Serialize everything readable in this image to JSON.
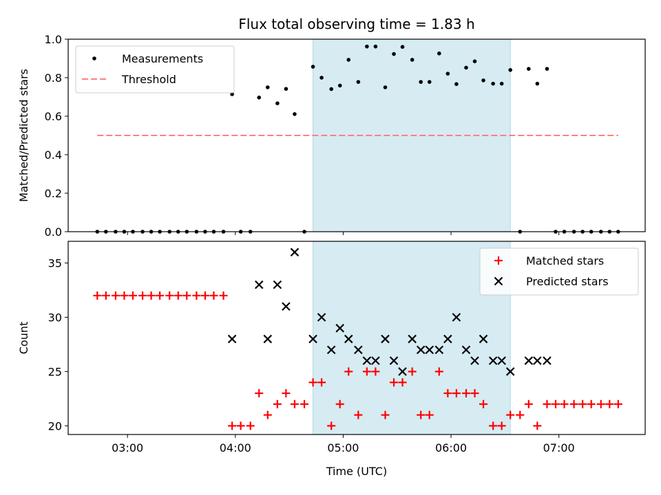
{
  "chart_data": {
    "type": "scatter",
    "title": "Flux total observing time = 1.83 h",
    "xlabel": "Time (UTC)",
    "x_unit": "hours UTC",
    "xlim": [
      2.45,
      7.8
    ],
    "xticks": [
      {
        "value": 3.0,
        "label": "03:00"
      },
      {
        "value": 4.0,
        "label": "04:00"
      },
      {
        "value": 5.0,
        "label": "05:00"
      },
      {
        "value": 6.0,
        "label": "06:00"
      },
      {
        "value": 7.0,
        "label": "07:00"
      }
    ],
    "shaded_span": [
      4.72,
      6.55
    ],
    "shade_color": "#add8e6",
    "panels": [
      {
        "id": "ratio",
        "ylabel": "Matched/Predicted stars",
        "ylim": [
          0,
          1.0
        ],
        "yticks": [
          {
            "value": 0.0,
            "label": "0.0"
          },
          {
            "value": 0.2,
            "label": "0.2"
          },
          {
            "value": 0.4,
            "label": "0.4"
          },
          {
            "value": 0.6,
            "label": "0.6"
          },
          {
            "value": 0.8,
            "label": "0.8"
          },
          {
            "value": 1.0,
            "label": "1.0"
          }
        ],
        "legend": {
          "position": "upper-left"
        },
        "series": [
          {
            "name": "Measurements",
            "marker": "dot",
            "color": "#000000",
            "points": [
              [
                2.72,
                0.0
              ],
              [
                2.8,
                0.0
              ],
              [
                2.89,
                0.0
              ],
              [
                2.97,
                0.0
              ],
              [
                3.05,
                0.0
              ],
              [
                3.14,
                0.0
              ],
              [
                3.22,
                0.0
              ],
              [
                3.3,
                0.0
              ],
              [
                3.39,
                0.0
              ],
              [
                3.47,
                0.0
              ],
              [
                3.55,
                0.0
              ],
              [
                3.64,
                0.0
              ],
              [
                3.72,
                0.0
              ],
              [
                3.8,
                0.0
              ],
              [
                3.89,
                0.0
              ],
              [
                3.97,
                0.714
              ],
              [
                4.05,
                0.0
              ],
              [
                4.14,
                0.0
              ],
              [
                4.22,
                0.697
              ],
              [
                4.3,
                0.75
              ],
              [
                4.39,
                0.667
              ],
              [
                4.47,
                0.742
              ],
              [
                4.55,
                0.611
              ],
              [
                4.64,
                0.0
              ],
              [
                4.72,
                0.857
              ],
              [
                4.8,
                0.8
              ],
              [
                4.89,
                0.741
              ],
              [
                4.97,
                0.759
              ],
              [
                5.05,
                0.893
              ],
              [
                5.14,
                0.778
              ],
              [
                5.22,
                0.962
              ],
              [
                5.3,
                0.962
              ],
              [
                5.39,
                0.75
              ],
              [
                5.47,
                0.923
              ],
              [
                5.55,
                0.96
              ],
              [
                5.64,
                0.893
              ],
              [
                5.72,
                0.778
              ],
              [
                5.8,
                0.778
              ],
              [
                5.89,
                0.926
              ],
              [
                5.97,
                0.821
              ],
              [
                6.05,
                0.767
              ],
              [
                6.14,
                0.852
              ],
              [
                6.22,
                0.885
              ],
              [
                6.3,
                0.786
              ],
              [
                6.39,
                0.769
              ],
              [
                6.47,
                0.769
              ],
              [
                6.55,
                0.84
              ],
              [
                6.64,
                0.0
              ],
              [
                6.72,
                0.846
              ],
              [
                6.8,
                0.769
              ],
              [
                6.89,
                0.846
              ],
              [
                6.97,
                0.0
              ],
              [
                7.05,
                0.0
              ],
              [
                7.14,
                0.0
              ],
              [
                7.22,
                0.0
              ],
              [
                7.3,
                0.0
              ],
              [
                7.39,
                0.0
              ],
              [
                7.47,
                0.0
              ],
              [
                7.55,
                0.0
              ]
            ]
          },
          {
            "name": "Threshold",
            "marker": "dashed-line",
            "color": "#ff7f7f",
            "points": [
              [
                2.72,
                0.5
              ],
              [
                7.55,
                0.5
              ]
            ]
          }
        ]
      },
      {
        "id": "count",
        "ylabel": "Count",
        "ylim": [
          19.2,
          37.0
        ],
        "yticks": [
          {
            "value": 20,
            "label": "20"
          },
          {
            "value": 25,
            "label": "25"
          },
          {
            "value": 30,
            "label": "30"
          },
          {
            "value": 35,
            "label": "35"
          }
        ],
        "legend": {
          "position": "upper-right"
        },
        "series": [
          {
            "name": "Matched stars",
            "marker": "plus",
            "color": "#ff0000",
            "points": [
              [
                2.72,
                32
              ],
              [
                2.8,
                32
              ],
              [
                2.89,
                32
              ],
              [
                2.97,
                32
              ],
              [
                3.05,
                32
              ],
              [
                3.14,
                32
              ],
              [
                3.22,
                32
              ],
              [
                3.3,
                32
              ],
              [
                3.39,
                32
              ],
              [
                3.47,
                32
              ],
              [
                3.55,
                32
              ],
              [
                3.64,
                32
              ],
              [
                3.72,
                32
              ],
              [
                3.8,
                32
              ],
              [
                3.89,
                32
              ],
              [
                3.97,
                20
              ],
              [
                4.05,
                20
              ],
              [
                4.14,
                20
              ],
              [
                4.22,
                23
              ],
              [
                4.3,
                21
              ],
              [
                4.39,
                22
              ],
              [
                4.47,
                23
              ],
              [
                4.55,
                22
              ],
              [
                4.64,
                22
              ],
              [
                4.72,
                24
              ],
              [
                4.8,
                24
              ],
              [
                4.89,
                20
              ],
              [
                4.97,
                22
              ],
              [
                5.05,
                25
              ],
              [
                5.14,
                21
              ],
              [
                5.22,
                25
              ],
              [
                5.3,
                25
              ],
              [
                5.39,
                21
              ],
              [
                5.47,
                24
              ],
              [
                5.55,
                24
              ],
              [
                5.64,
                25
              ],
              [
                5.72,
                21
              ],
              [
                5.8,
                21
              ],
              [
                5.89,
                25
              ],
              [
                5.97,
                23
              ],
              [
                6.05,
                23
              ],
              [
                6.14,
                23
              ],
              [
                6.22,
                23
              ],
              [
                6.3,
                22
              ],
              [
                6.39,
                20
              ],
              [
                6.47,
                20
              ],
              [
                6.55,
                21
              ],
              [
                6.64,
                21
              ],
              [
                6.72,
                22
              ],
              [
                6.8,
                20
              ],
              [
                6.89,
                22
              ],
              [
                6.97,
                22
              ],
              [
                7.05,
                22
              ],
              [
                7.14,
                22
              ],
              [
                7.22,
                22
              ],
              [
                7.3,
                22
              ],
              [
                7.39,
                22
              ],
              [
                7.47,
                22
              ],
              [
                7.55,
                22
              ]
            ]
          },
          {
            "name": "Predicted stars",
            "marker": "x",
            "color": "#000000",
            "points": [
              [
                3.97,
                28
              ],
              [
                4.22,
                33
              ],
              [
                4.3,
                28
              ],
              [
                4.39,
                33
              ],
              [
                4.47,
                31
              ],
              [
                4.55,
                36
              ],
              [
                4.72,
                28
              ],
              [
                4.8,
                30
              ],
              [
                4.89,
                27
              ],
              [
                4.97,
                29
              ],
              [
                5.05,
                28
              ],
              [
                5.14,
                27
              ],
              [
                5.22,
                26
              ],
              [
                5.3,
                26
              ],
              [
                5.39,
                28
              ],
              [
                5.47,
                26
              ],
              [
                5.55,
                25
              ],
              [
                5.64,
                28
              ],
              [
                5.72,
                27
              ],
              [
                5.8,
                27
              ],
              [
                5.89,
                27
              ],
              [
                5.97,
                28
              ],
              [
                6.05,
                30
              ],
              [
                6.14,
                27
              ],
              [
                6.22,
                26
              ],
              [
                6.3,
                28
              ],
              [
                6.39,
                26
              ],
              [
                6.47,
                26
              ],
              [
                6.55,
                25
              ],
              [
                6.72,
                26
              ],
              [
                6.8,
                26
              ],
              [
                6.89,
                26
              ]
            ]
          }
        ]
      }
    ]
  }
}
